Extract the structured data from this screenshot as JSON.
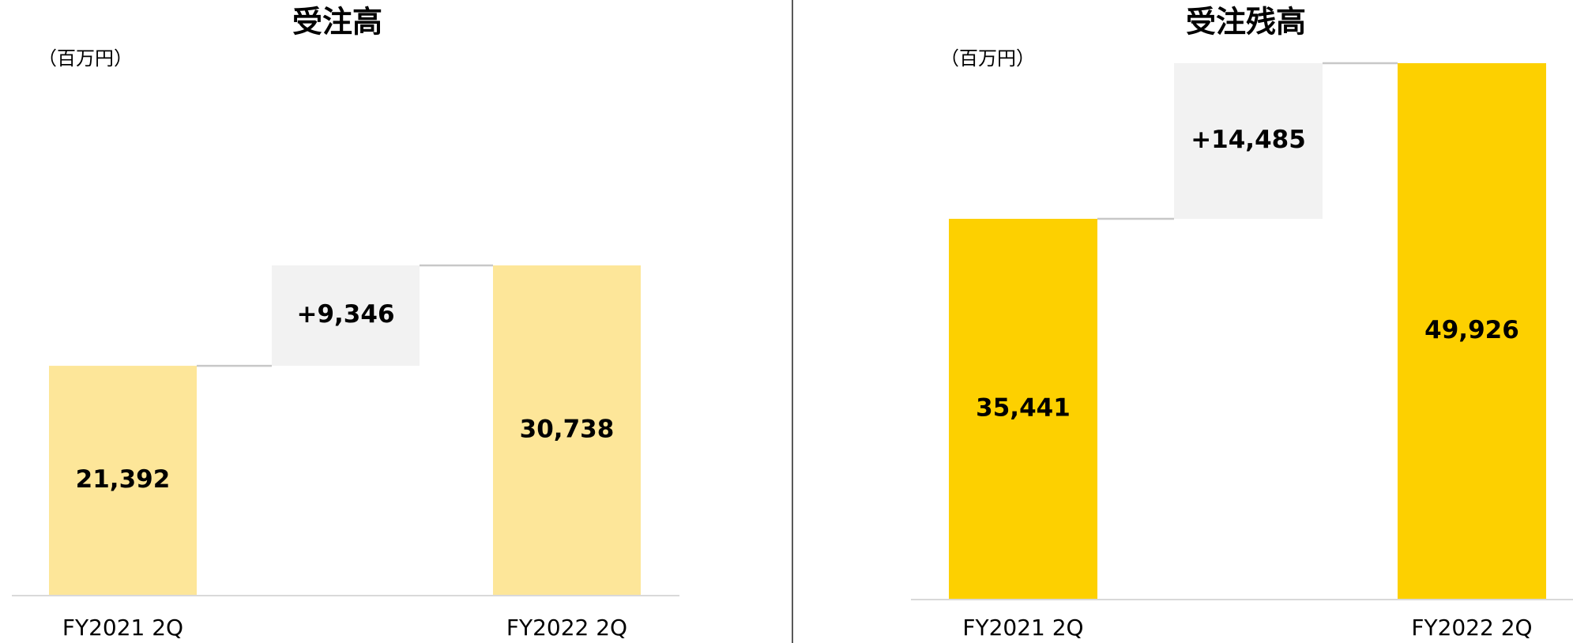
{
  "chart_data": [
    {
      "type": "waterfall",
      "title": "受注高",
      "unit_label": "（百万円）",
      "categories": [
        "FY2021 2Q",
        null,
        "FY2022 2Q"
      ],
      "values": [
        21392,
        9346,
        30738
      ],
      "value_labels": [
        "21,392",
        "+9,346",
        "30,738"
      ],
      "color": "#fde699",
      "delta_color": "#f2f2f2",
      "ylim": [
        0,
        50000
      ]
    },
    {
      "type": "waterfall",
      "title": "受注残高",
      "unit_label": "（百万円）",
      "categories": [
        "FY2021 2Q",
        null,
        "FY2022 2Q"
      ],
      "values": [
        35441,
        14485,
        49926
      ],
      "value_labels": [
        "35,441",
        "+14,485",
        "49,926"
      ],
      "color": "#fdd000",
      "delta_color": "#f2f2f2",
      "ylim": [
        0,
        50000
      ]
    }
  ]
}
